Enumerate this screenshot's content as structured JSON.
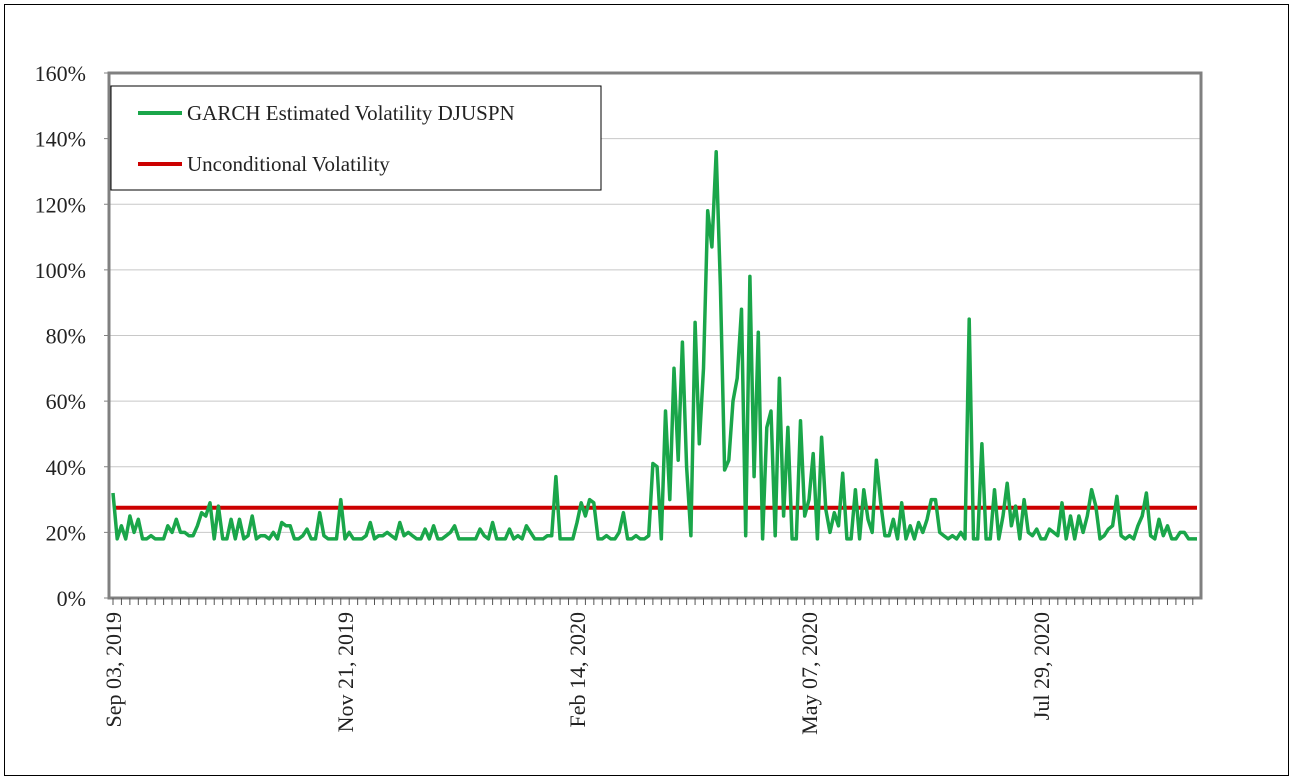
{
  "chart_data": {
    "type": "line",
    "title": "",
    "xlabel": "",
    "ylabel": "",
    "ylim": [
      0,
      1.6
    ],
    "y_ticks": [
      "0%",
      "20%",
      "40%",
      "60%",
      "80%",
      "100%",
      "120%",
      "140%",
      "160%"
    ],
    "x_tick_labels": [
      "Sep 03, 2019",
      "Nov 21, 2019",
      "Feb 14, 2020",
      "May 07, 2020",
      "Jul 29, 2020"
    ],
    "grid": "horizontal",
    "legend_position": "top-left",
    "legend": [
      "GARCH Estimated Volatility DJUSPN",
      "Unconditional Volatility"
    ],
    "series": [
      {
        "name": "GARCH Estimated Volatility DJUSPN",
        "color": "#1aa64a",
        "values": [
          0.32,
          0.18,
          0.22,
          0.18,
          0.25,
          0.2,
          0.24,
          0.18,
          0.18,
          0.19,
          0.18,
          0.18,
          0.18,
          0.22,
          0.2,
          0.24,
          0.2,
          0.2,
          0.19,
          0.19,
          0.22,
          0.26,
          0.25,
          0.29,
          0.18,
          0.28,
          0.18,
          0.18,
          0.24,
          0.18,
          0.24,
          0.18,
          0.19,
          0.25,
          0.18,
          0.19,
          0.19,
          0.18,
          0.2,
          0.18,
          0.23,
          0.22,
          0.22,
          0.18,
          0.18,
          0.19,
          0.21,
          0.18,
          0.18,
          0.26,
          0.19,
          0.18,
          0.18,
          0.18,
          0.3,
          0.18,
          0.2,
          0.18,
          0.18,
          0.18,
          0.19,
          0.23,
          0.18,
          0.19,
          0.19,
          0.2,
          0.19,
          0.18,
          0.23,
          0.19,
          0.2,
          0.19,
          0.18,
          0.18,
          0.21,
          0.18,
          0.22,
          0.18,
          0.18,
          0.19,
          0.2,
          0.22,
          0.18,
          0.18,
          0.18,
          0.18,
          0.18,
          0.21,
          0.19,
          0.18,
          0.23,
          0.18,
          0.18,
          0.18,
          0.21,
          0.18,
          0.19,
          0.18,
          0.22,
          0.2,
          0.18,
          0.18,
          0.18,
          0.19,
          0.19,
          0.37,
          0.18,
          0.18,
          0.18,
          0.18,
          0.23,
          0.29,
          0.25,
          0.3,
          0.29,
          0.18,
          0.18,
          0.19,
          0.18,
          0.18,
          0.2,
          0.26,
          0.18,
          0.18,
          0.19,
          0.18,
          0.18,
          0.19,
          0.41,
          0.4,
          0.18,
          0.57,
          0.3,
          0.7,
          0.42,
          0.78,
          0.4,
          0.19,
          0.84,
          0.47,
          0.7,
          1.18,
          1.07,
          1.36,
          0.95,
          0.39,
          0.42,
          0.6,
          0.67,
          0.88,
          0.19,
          0.98,
          0.37,
          0.81,
          0.18,
          0.52,
          0.57,
          0.19,
          0.67,
          0.25,
          0.52,
          0.18,
          0.18,
          0.54,
          0.25,
          0.3,
          0.44,
          0.18,
          0.49,
          0.27,
          0.2,
          0.26,
          0.22,
          0.38,
          0.18,
          0.18,
          0.33,
          0.18,
          0.33,
          0.24,
          0.2,
          0.42,
          0.29,
          0.19,
          0.19,
          0.24,
          0.18,
          0.29,
          0.18,
          0.22,
          0.18,
          0.23,
          0.2,
          0.24,
          0.3,
          0.3,
          0.2,
          0.19,
          0.18,
          0.19,
          0.18,
          0.2,
          0.18,
          0.85,
          0.18,
          0.18,
          0.47,
          0.18,
          0.18,
          0.33,
          0.18,
          0.25,
          0.35,
          0.22,
          0.28,
          0.18,
          0.3,
          0.2,
          0.19,
          0.21,
          0.18,
          0.18,
          0.21,
          0.2,
          0.19,
          0.29,
          0.18,
          0.25,
          0.18,
          0.25,
          0.2,
          0.25,
          0.33,
          0.28,
          0.18,
          0.19,
          0.21,
          0.22,
          0.31,
          0.19,
          0.18,
          0.19,
          0.18,
          0.22,
          0.25,
          0.32,
          0.19,
          0.18,
          0.24,
          0.19,
          0.22,
          0.18,
          0.18,
          0.2,
          0.2,
          0.18,
          0.18,
          0.18
        ]
      },
      {
        "name": "Unconditional Volatility",
        "color": "#cc0000",
        "values": [
          0.275,
          0.275
        ]
      }
    ]
  }
}
